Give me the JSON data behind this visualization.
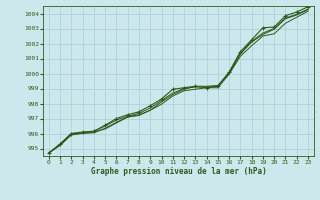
{
  "title": "Graphe pression niveau de la mer (hPa)",
  "x_labels": [
    0,
    1,
    2,
    3,
    4,
    5,
    6,
    7,
    8,
    9,
    10,
    11,
    12,
    13,
    14,
    15,
    16,
    17,
    18,
    19,
    20,
    21,
    22,
    23
  ],
  "ylim": [
    994.5,
    1004.5
  ],
  "xlim": [
    -0.5,
    23.5
  ],
  "yticks": [
    995,
    996,
    997,
    998,
    999,
    1000,
    1001,
    1002,
    1003,
    1004
  ],
  "bg_color": "#cce8ed",
  "grid_color": "#aacdd4",
  "line_color": "#2d5a1b",
  "line1": [
    994.7,
    995.3,
    996.0,
    996.05,
    996.1,
    996.3,
    996.7,
    997.1,
    997.25,
    997.55,
    998.1,
    998.6,
    998.95,
    999.15,
    999.15,
    999.2,
    1000.0,
    1001.3,
    1002.1,
    1002.6,
    1002.95,
    1003.65,
    1003.9,
    1004.25
  ],
  "line2": [
    994.7,
    995.25,
    995.95,
    996.05,
    996.15,
    996.5,
    996.9,
    997.15,
    997.35,
    997.7,
    998.2,
    998.7,
    999.0,
    999.1,
    999.1,
    999.15,
    1000.05,
    1001.35,
    1002.15,
    1002.7,
    1003.0,
    1003.7,
    1003.95,
    1004.3
  ],
  "line3_marked": [
    994.7,
    995.3,
    996.0,
    996.1,
    996.15,
    996.55,
    997.0,
    997.25,
    997.45,
    997.85,
    998.3,
    998.95,
    999.05,
    999.15,
    999.05,
    999.15,
    1000.1,
    1001.45,
    1002.25,
    1003.05,
    1003.1,
    1003.85,
    1004.1,
    1004.45
  ],
  "line4": [
    994.7,
    995.2,
    995.9,
    996.0,
    996.05,
    996.35,
    996.75,
    997.1,
    997.2,
    997.55,
    997.95,
    998.5,
    998.85,
    998.95,
    999.05,
    999.05,
    999.95,
    1001.15,
    1001.85,
    1002.5,
    1002.65,
    1003.35,
    1003.75,
    1004.15
  ]
}
